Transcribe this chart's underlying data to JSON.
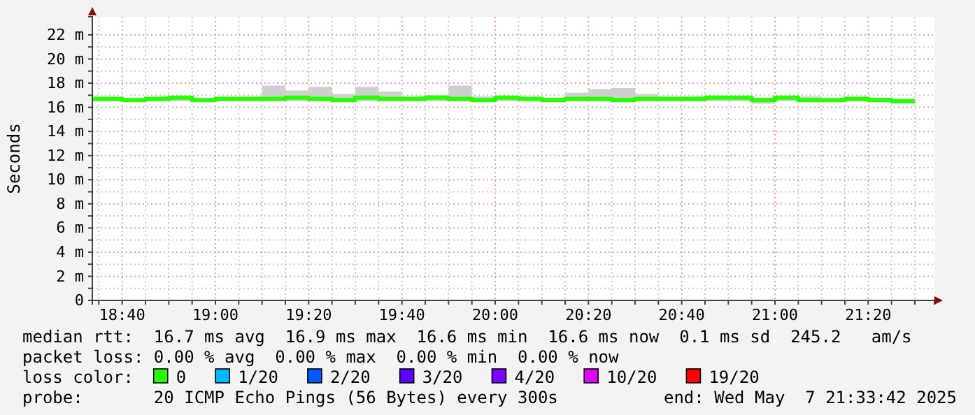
{
  "chart_data": {
    "type": "step",
    "ylabel": "Seconds",
    "xlim": [
      18.56,
      21.57
    ],
    "ylim": [
      0,
      23.5
    ],
    "xticks": [
      {
        "value": 18.5833,
        "label": null
      },
      {
        "value": 18.6667,
        "label": "18:40"
      },
      {
        "value": 18.75,
        "label": null
      },
      {
        "value": 18.8333,
        "label": null
      },
      {
        "value": 18.9167,
        "label": null
      },
      {
        "value": 19,
        "label": "19:00"
      },
      {
        "value": 19.0833,
        "label": null
      },
      {
        "value": 19.1667,
        "label": null
      },
      {
        "value": 19.25,
        "label": null
      },
      {
        "value": 19.3333,
        "label": "19:20"
      },
      {
        "value": 19.4167,
        "label": null
      },
      {
        "value": 19.5,
        "label": null
      },
      {
        "value": 19.5833,
        "label": null
      },
      {
        "value": 19.6667,
        "label": "19:40"
      },
      {
        "value": 19.75,
        "label": null
      },
      {
        "value": 19.8333,
        "label": null
      },
      {
        "value": 19.9167,
        "label": null
      },
      {
        "value": 20,
        "label": "20:00"
      },
      {
        "value": 20.0833,
        "label": null
      },
      {
        "value": 20.1667,
        "label": null
      },
      {
        "value": 20.25,
        "label": null
      },
      {
        "value": 20.3333,
        "label": "20:20"
      },
      {
        "value": 20.4167,
        "label": null
      },
      {
        "value": 20.5,
        "label": null
      },
      {
        "value": 20.5833,
        "label": null
      },
      {
        "value": 20.6667,
        "label": "20:40"
      },
      {
        "value": 20.75,
        "label": null
      },
      {
        "value": 20.8333,
        "label": null
      },
      {
        "value": 20.9167,
        "label": null
      },
      {
        "value": 21,
        "label": "21:00"
      },
      {
        "value": 21.0833,
        "label": null
      },
      {
        "value": 21.1667,
        "label": null
      },
      {
        "value": 21.25,
        "label": null
      },
      {
        "value": 21.3333,
        "label": "21:20"
      },
      {
        "value": 21.4167,
        "label": null
      },
      {
        "value": 21.5,
        "label": null
      }
    ],
    "yticks": [
      0,
      {
        "value": 1,
        "label": null
      },
      {
        "value": 2,
        "label": "2 m"
      },
      {
        "value": 3,
        "label": null
      },
      {
        "value": 4,
        "label": "4 m"
      },
      {
        "value": 5,
        "label": null
      },
      {
        "value": 6,
        "label": "6 m"
      },
      {
        "value": 7,
        "label": null
      },
      {
        "value": 8,
        "label": "8 m"
      },
      {
        "value": 9,
        "label": null
      },
      {
        "value": 10,
        "label": "10 m"
      },
      {
        "value": 11,
        "label": null
      },
      {
        "value": 12,
        "label": "12 m"
      },
      {
        "value": 13,
        "label": null
      },
      {
        "value": 14,
        "label": "14 m"
      },
      {
        "value": 15,
        "label": null
      },
      {
        "value": 16,
        "label": "16 m"
      },
      {
        "value": 17,
        "label": null
      },
      {
        "value": 18,
        "label": "18 m"
      },
      {
        "value": 19,
        "label": null
      },
      {
        "value": 20,
        "label": "20 m"
      },
      {
        "value": 21,
        "label": null
      },
      {
        "value": 22,
        "label": "22 m"
      }
    ],
    "grid": true,
    "legend": "bottom",
    "legend_title": "loss color:",
    "x": [
      18.56,
      18.5833,
      18.6667,
      18.75,
      18.8333,
      18.9167,
      19,
      19.0833,
      19.1667,
      19.25,
      19.3333,
      19.4167,
      19.5,
      19.5833,
      19.6667,
      19.75,
      19.8333,
      19.9167,
      20,
      20.0833,
      20.1667,
      20.25,
      20.3333,
      20.4167,
      20.5,
      20.5833,
      20.6667,
      20.75,
      20.8333,
      20.9167,
      21,
      21.0833,
      21.1667,
      21.25,
      21.3333,
      21.4167,
      21.5
    ],
    "series": [
      {
        "name": "0",
        "color": "#26ff00",
        "values": [
          16.7,
          16.7,
          16.6,
          16.7,
          16.8,
          16.6,
          16.7,
          16.7,
          16.7,
          16.8,
          16.7,
          16.6,
          16.8,
          16.7,
          16.7,
          16.8,
          16.7,
          16.6,
          16.8,
          16.7,
          16.6,
          16.7,
          16.7,
          16.6,
          16.7,
          16.7,
          16.7,
          16.8,
          16.8,
          16.6,
          16.8,
          16.6,
          16.6,
          16.7,
          16.6,
          16.5,
          16.5
        ],
        "lower": [
          16.5,
          16.5,
          16.5,
          16.5,
          16.5,
          16.5,
          16.5,
          16.5,
          16.5,
          16.5,
          16.5,
          16.5,
          16.5,
          16.5,
          16.5,
          16.5,
          16.5,
          16.5,
          16.5,
          16.5,
          16.5,
          16.5,
          16.5,
          16.5,
          16.5,
          16.5,
          16.5,
          16.5,
          16.5,
          16.3,
          16.5,
          16.5,
          16.5,
          16.5,
          16.5,
          16.5,
          16.5
        ],
        "upper": [
          16.8,
          16.8,
          16.7,
          16.8,
          16.9,
          16.7,
          16.8,
          16.9,
          17.8,
          17.4,
          17.7,
          17.1,
          17.7,
          17.3,
          16.9,
          17,
          17.8,
          16.9,
          16.9,
          16.8,
          16.8,
          17.2,
          17.5,
          17.6,
          17.1,
          16.9,
          16.9,
          16.9,
          16.9,
          16.8,
          16.9,
          16.9,
          16.7,
          16.9,
          16.8,
          16.7,
          16.7
        ]
      },
      {
        "name": "1/20",
        "color": "#00b8ff",
        "values": [
          null,
          null,
          null,
          null,
          null,
          null,
          null,
          null,
          null,
          null,
          null,
          null,
          null,
          null,
          null,
          null,
          null,
          null,
          null,
          null,
          null,
          null,
          null,
          null,
          null,
          null,
          null,
          null,
          null,
          null,
          null,
          null,
          null,
          null,
          null,
          null,
          null
        ]
      },
      {
        "name": "2/20",
        "color": "#0059ff",
        "values": [
          null,
          null,
          null,
          null,
          null,
          null,
          null,
          null,
          null,
          null,
          null,
          null,
          null,
          null,
          null,
          null,
          null,
          null,
          null,
          null,
          null,
          null,
          null,
          null,
          null,
          null,
          null,
          null,
          null,
          null,
          null,
          null,
          null,
          null,
          null,
          null,
          null
        ]
      },
      {
        "name": "3/20",
        "color": "#5e00ff",
        "values": [
          null,
          null,
          null,
          null,
          null,
          null,
          null,
          null,
          null,
          null,
          null,
          null,
          null,
          null,
          null,
          null,
          null,
          null,
          null,
          null,
          null,
          null,
          null,
          null,
          null,
          null,
          null,
          null,
          null,
          null,
          null,
          null,
          null,
          null,
          null,
          null,
          null
        ]
      },
      {
        "name": "4/20",
        "color": "#7e00ff",
        "values": [
          null,
          null,
          null,
          null,
          null,
          null,
          null,
          null,
          null,
          null,
          null,
          null,
          null,
          null,
          null,
          null,
          null,
          null,
          null,
          null,
          null,
          null,
          null,
          null,
          null,
          null,
          null,
          null,
          null,
          null,
          null,
          null,
          null,
          null,
          null,
          null,
          null
        ]
      },
      {
        "name": "10/20",
        "color": "#dd00ff",
        "values": [
          null,
          null,
          null,
          null,
          null,
          null,
          null,
          null,
          null,
          null,
          null,
          null,
          null,
          null,
          null,
          null,
          null,
          null,
          null,
          null,
          null,
          null,
          null,
          null,
          null,
          null,
          null,
          null,
          null,
          null,
          null,
          null,
          null,
          null,
          null,
          null,
          null
        ]
      },
      {
        "name": "19/20",
        "color": "#ff0000",
        "values": [
          null,
          null,
          null,
          null,
          null,
          null,
          null,
          null,
          null,
          null,
          null,
          null,
          null,
          null,
          null,
          null,
          null,
          null,
          null,
          null,
          null,
          null,
          null,
          null,
          null,
          null,
          null,
          null,
          null,
          null,
          null,
          null,
          null,
          null,
          null,
          null,
          null
        ]
      }
    ],
    "annotations": [
      "median rtt:  16.7 ms avg  16.9 ms max  16.6 ms min  16.6 ms now  0.1 ms sd  245.2   am/s",
      "packet loss: 0.00 % avg  0.00 % max  0.00 % min  0.00 % now",
      "probe:       20 ICMP Echo Pings (56 Bytes) every 300s",
      "end: Wed May  7 21:33:42 2025"
    ]
  }
}
